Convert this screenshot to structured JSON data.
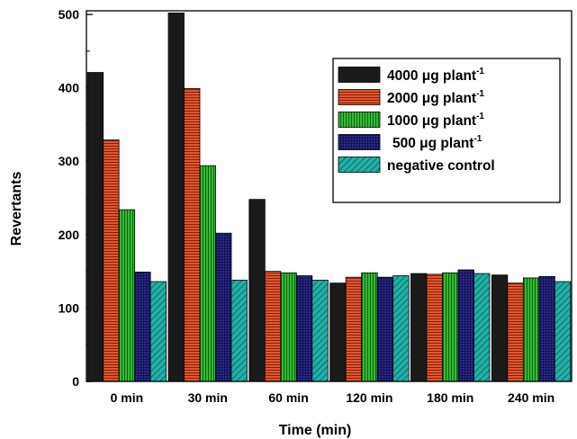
{
  "chart_data": {
    "type": "bar",
    "xlabel": "Time (min)",
    "ylabel": "Revertants",
    "ylim": [
      0,
      505
    ],
    "yticks": [
      0,
      100,
      200,
      300,
      400,
      500
    ],
    "categories": [
      "0 min",
      "30 min",
      "60 min",
      "120 min",
      "180 min",
      "240 min"
    ],
    "legend_placement": "top-right",
    "series": [
      {
        "name": "4000 μg plant",
        "sup": "-1",
        "pattern": "solid",
        "color": "#1a1a1a",
        "values": [
          421,
          502,
          248,
          134,
          147,
          145
        ]
      },
      {
        "name": "2000 μg plant",
        "sup": "-1",
        "pattern": "horizontal-lines",
        "color": "#e8542c",
        "values": [
          329,
          399,
          150,
          142,
          146,
          134
        ]
      },
      {
        "name": "1000 μg plant",
        "sup": "-1",
        "pattern": "vertical-lines",
        "color": "#33bb33",
        "values": [
          234,
          294,
          148,
          148,
          148,
          141
        ]
      },
      {
        "name": "500 μg plant",
        "sup": "-1",
        "pattern": "grid",
        "color": "#2a2a8c",
        "values": [
          149,
          202,
          144,
          142,
          152,
          143
        ]
      },
      {
        "name": "negative control",
        "sup": "",
        "pattern": "diagonal",
        "color": "#22b0a8",
        "values": [
          136,
          138,
          138,
          144,
          147,
          136
        ]
      }
    ]
  }
}
